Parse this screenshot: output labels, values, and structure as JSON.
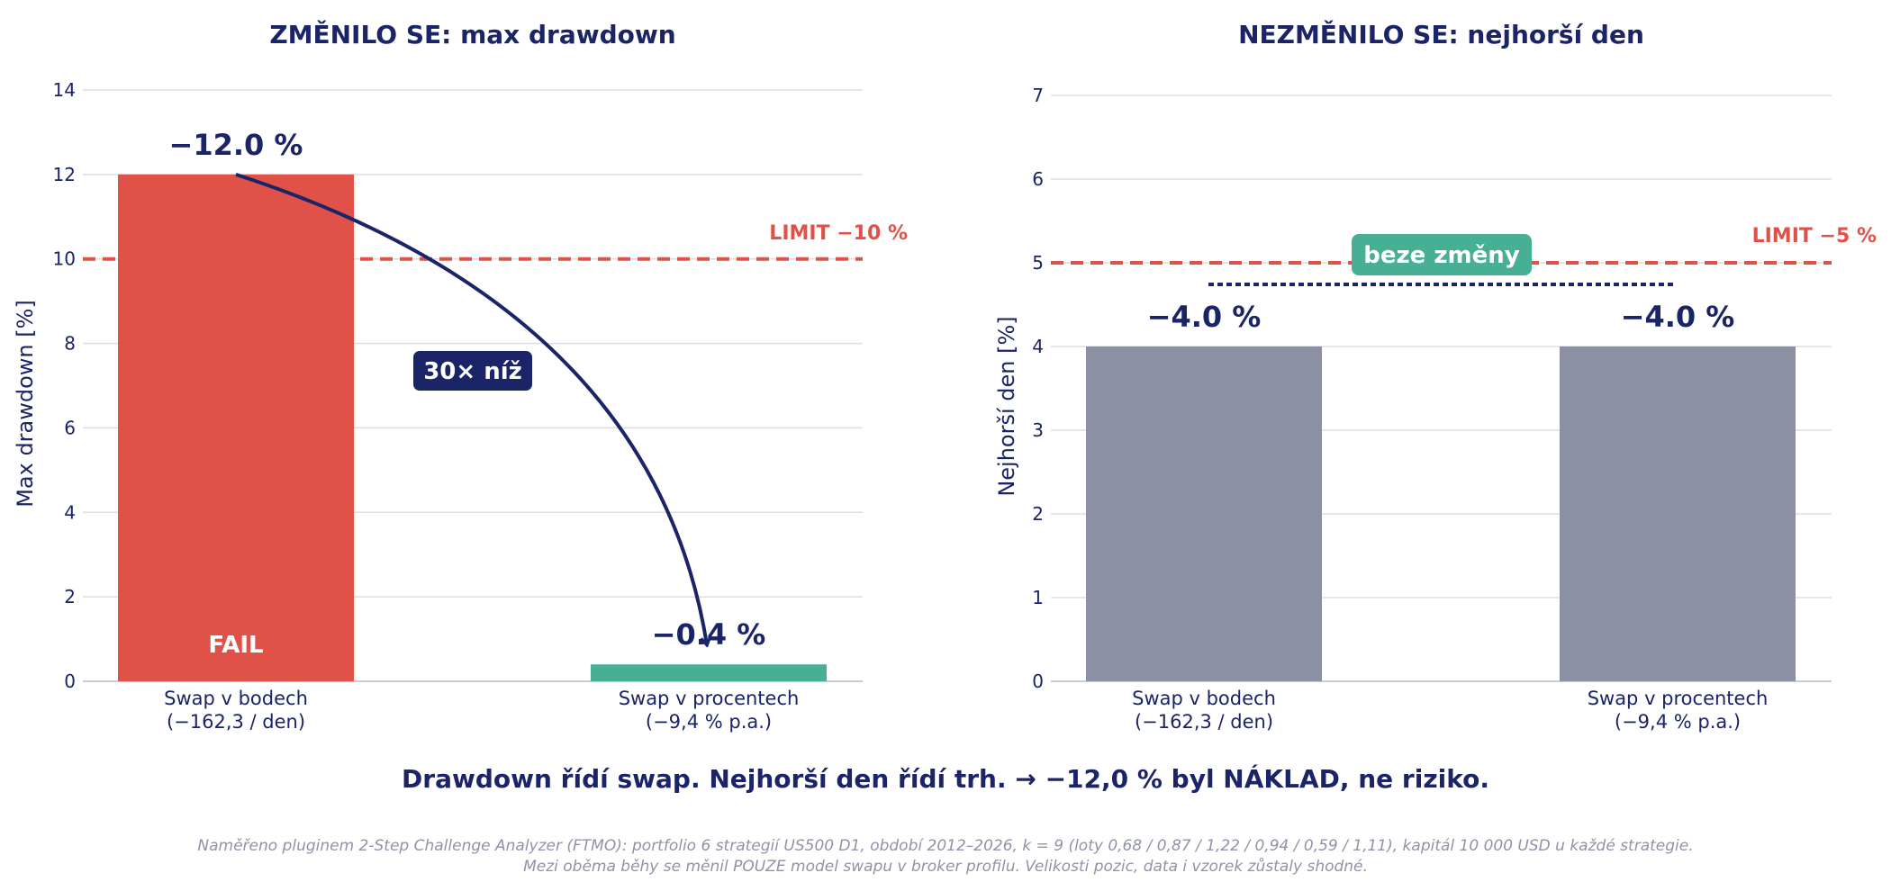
{
  "colors": {
    "navy": "#1a2466",
    "red": "#e05248",
    "teal": "#47b094",
    "gray": "#8b90a5",
    "grid": "#dcdde6",
    "footnote": "#8f93a8"
  },
  "chart_data": [
    {
      "type": "bar",
      "title": "ZMĚNILO SE:  max drawdown",
      "ylabel": "Max drawdown  [%]",
      "ylim": [
        0,
        14
      ],
      "yticks": [
        "0",
        "2",
        "4",
        "6",
        "8",
        "10",
        "12",
        "14"
      ],
      "grid": true,
      "categories": [
        [
          "Swap v bodech",
          "(−162,3 / den)"
        ],
        [
          "Swap v procentech",
          "(−9,4 % p.a.)"
        ]
      ],
      "values": [
        12.0,
        0.4
      ],
      "value_labels": [
        "−12.0 %",
        "−0.4 %"
      ],
      "bar_colors": [
        "#e05248",
        "#47b094"
      ],
      "bar_text": "FAIL",
      "limit": {
        "value": 10,
        "label": "LIMIT −10 %"
      },
      "annotation": "30× níž"
    },
    {
      "type": "bar",
      "title": "NEZMĚNILO SE:  nejhorší den",
      "ylabel": "Nejhorší den  [%]",
      "ylim": [
        0,
        7
      ],
      "yticks": [
        "0",
        "1",
        "2",
        "3",
        "4",
        "5",
        "6",
        "7"
      ],
      "grid": true,
      "categories": [
        [
          "Swap v bodech",
          "(−162,3 / den)"
        ],
        [
          "Swap v procentech",
          "(−9,4 % p.a.)"
        ]
      ],
      "values": [
        4.0,
        4.0
      ],
      "value_labels": [
        "−4.0 %",
        "−4.0 %"
      ],
      "bar_colors": [
        "#8b90a5",
        "#8b90a5"
      ],
      "limit": {
        "value": 5,
        "label": "LIMIT −5 %"
      },
      "annotation": "beze změny"
    }
  ],
  "summary": "Drawdown řídí swap.  Nejhorší den řídí trh.  →  −12,0 % byl NÁKLAD, ne riziko.",
  "footnote": [
    "Naměřeno pluginem 2-Step Challenge Analyzer (FTMO): portfolio 6 strategií US500 D1, období 2012–2026, k = 9 (loty 0,68 / 0,87 / 1,22 / 0,94 / 0,59 / 1,11), kapitál 10 000 USD u každé strategie.",
    "Mezi oběma běhy se měnil POUZE model swapu v broker profilu. Velikosti pozic, data i vzorek zůstaly shodné."
  ]
}
